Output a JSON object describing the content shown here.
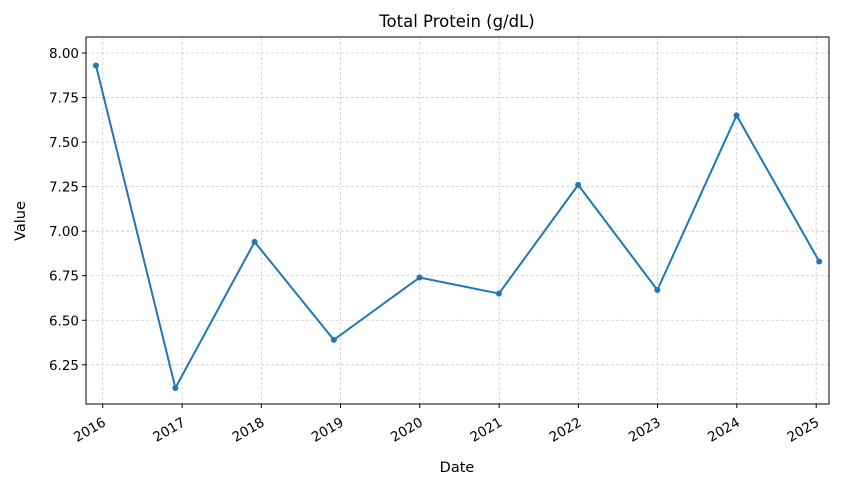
{
  "chart_data": {
    "type": "line",
    "title": "Total Protein (g/dL)",
    "xlabel": "Date",
    "ylabel": "Value",
    "x_tick_labels": [
      "2016",
      "2017",
      "2018",
      "2019",
      "2020",
      "2021",
      "2022",
      "2023",
      "2024",
      "2025"
    ],
    "y_tick_labels": [
      "6.25",
      "6.50",
      "6.75",
      "7.00",
      "7.25",
      "7.50",
      "7.75",
      "8.00"
    ],
    "ylim": [
      6.03,
      8.09
    ],
    "grid": true,
    "series": [
      {
        "color": "#1f77b4",
        "points": [
          {
            "x": "2015-12-01",
            "y": 7.93
          },
          {
            "x": "2016-12-01",
            "y": 6.12
          },
          {
            "x": "2017-12-01",
            "y": 6.94
          },
          {
            "x": "2018-12-01",
            "y": 6.39
          },
          {
            "x": "2019-12-31",
            "y": 6.74
          },
          {
            "x": "2020-12-31",
            "y": 6.65
          },
          {
            "x": "2021-12-31",
            "y": 7.26
          },
          {
            "x": "2022-12-31",
            "y": 6.67
          },
          {
            "x": "2023-12-31",
            "y": 7.65
          },
          {
            "x": "2025-01-15",
            "y": 6.83
          }
        ]
      }
    ]
  }
}
